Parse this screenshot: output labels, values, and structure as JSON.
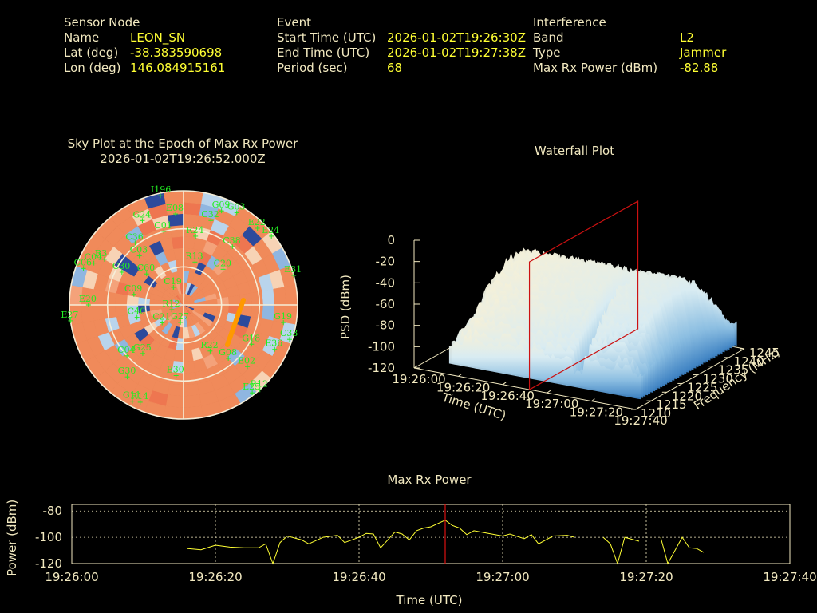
{
  "info": {
    "sensor": {
      "heading": "Sensor Node",
      "rows": [
        {
          "label": "Name",
          "value": "LEON_SN"
        },
        {
          "label": "Lat (deg)",
          "value": "-38.383590698"
        },
        {
          "label": "Lon (deg)",
          "value": "146.084915161"
        }
      ]
    },
    "event": {
      "heading": "Event",
      "rows": [
        {
          "label": "Start Time (UTC)",
          "value": "2026-01-02T19:26:30Z"
        },
        {
          "label": "End Time (UTC)",
          "value": "2026-01-02T19:27:38Z"
        },
        {
          "label": "Period (sec)",
          "value": "68"
        }
      ]
    },
    "interference": {
      "heading": "Interference",
      "rows": [
        {
          "label": "Band",
          "value": "L2"
        },
        {
          "label": "Type",
          "value": "Jammer"
        },
        {
          "label": "Max Rx Power (dBm)",
          "value": "-82.88"
        }
      ]
    }
  },
  "skyplot": {
    "title": "Sky Plot at the Epoch of Max Rx Power",
    "subtitle": "2026-01-02T19:26:52.000Z",
    "colors": {
      "warm": "#f08a5a",
      "light": "#f7d3b5",
      "cool": "#8fb6e0",
      "dark": "#2d4a9c",
      "ring": "#f5eed8",
      "satellite": "#22ee22",
      "trace": "#ff9900"
    },
    "satellites": [
      {
        "id": "I196",
        "az": 348,
        "el": 88
      },
      {
        "id": "G03",
        "az": 30,
        "el": 84
      },
      {
        "id": "G09",
        "az": 22,
        "el": 80
      },
      {
        "id": "E22",
        "az": 44,
        "el": 84
      },
      {
        "id": "G24",
        "az": 334,
        "el": 74
      },
      {
        "id": "E08",
        "az": 355,
        "el": 72
      },
      {
        "id": "C32",
        "az": 18,
        "el": 70
      },
      {
        "id": "E24",
        "az": 52,
        "el": 88
      },
      {
        "id": "C01",
        "az": 345,
        "el": 60
      },
      {
        "id": "C38",
        "az": 40,
        "el": 60
      },
      {
        "id": "R24",
        "az": 10,
        "el": 55
      },
      {
        "id": "C36",
        "az": 322,
        "el": 62
      },
      {
        "id": "R3",
        "az": 300,
        "el": 72
      },
      {
        "id": "C03",
        "az": 318,
        "el": 52
      },
      {
        "id": "E31",
        "az": 75,
        "el": 90
      },
      {
        "id": "C04",
        "az": 295,
        "el": 78
      },
      {
        "id": "C06",
        "az": 290,
        "el": 84
      },
      {
        "id": "R13",
        "az": 15,
        "el": 35
      },
      {
        "id": "C20",
        "az": 48,
        "el": 42
      },
      {
        "id": "C60",
        "az": 310,
        "el": 38
      },
      {
        "id": "C30",
        "az": 298,
        "el": 55
      },
      {
        "id": "C19",
        "az": 330,
        "el": 16
      },
      {
        "id": "C09",
        "az": 282,
        "el": 40
      },
      {
        "id": "E20",
        "az": 270,
        "el": 75
      },
      {
        "id": "C40",
        "az": 255,
        "el": 38
      },
      {
        "id": "R12",
        "az": 248,
        "el": 10
      },
      {
        "id": "G27",
        "az": 190,
        "el": 14
      },
      {
        "id": "C21",
        "az": 230,
        "el": 22
      },
      {
        "id": "E27",
        "az": 262,
        "el": 90
      },
      {
        "id": "G25",
        "az": 220,
        "el": 50
      },
      {
        "id": "G30",
        "az": 218,
        "el": 72
      },
      {
        "id": "C04",
        "az": 228,
        "el": 60
      },
      {
        "id": "E30",
        "az": 186,
        "el": 56
      },
      {
        "id": "G18",
        "az": 120,
        "el": 62
      },
      {
        "id": "G19",
        "az": 100,
        "el": 80
      },
      {
        "id": "E36",
        "az": 116,
        "el": 80
      },
      {
        "id": "C33",
        "az": 108,
        "el": 88
      },
      {
        "id": "R22",
        "az": 150,
        "el": 42
      },
      {
        "id": "G08",
        "az": 140,
        "el": 55
      },
      {
        "id": "E02",
        "az": 134,
        "el": 70
      },
      {
        "id": "R12",
        "az": 138,
        "el": 90
      },
      {
        "id": "E25",
        "az": 142,
        "el": 88
      },
      {
        "id": "G11",
        "az": 208,
        "el": 86
      },
      {
        "id": "R14",
        "az": 204,
        "el": 84
      }
    ]
  },
  "waterfall": {
    "title": "Waterfall Plot",
    "colors": {
      "top": "#f5f0d8",
      "bottom": "#3b82c4",
      "marker": "#cc1111"
    }
  },
  "chart_data": [
    {
      "type": "area",
      "name": "waterfall",
      "title": "Waterfall Plot",
      "xlabel": "Time (UTC)",
      "ylabel": "Frequency (MHz)",
      "zlabel": "PSD (dBm)",
      "x_ticks": [
        "19:26:00",
        "19:26:20",
        "19:26:40",
        "19:27:00",
        "19:27:20",
        "19:27:40"
      ],
      "y_ticks": [
        "1210",
        "1215",
        "1220",
        "1225",
        "1230",
        "1235",
        "1240",
        "1245"
      ],
      "z_ticks": [
        "0",
        "-20",
        "-40",
        "-60",
        "-80",
        "-100",
        "-120"
      ],
      "xlim": [
        "19:26:00",
        "19:27:40"
      ],
      "ylim": [
        1210,
        1245
      ],
      "zlim": [
        -120,
        0
      ],
      "time_marker": "19:26:52"
    },
    {
      "type": "line",
      "name": "max-rx-power",
      "title": "Max Rx Power",
      "xlabel": "Time (UTC)",
      "ylabel": "Power (dBm)",
      "x_ticks": [
        "19:26:00",
        "19:26:20",
        "19:26:40",
        "19:27:00",
        "19:27:20",
        "19:27:40"
      ],
      "y_ticks": [
        "-80",
        "-100",
        "-120"
      ],
      "xlim": [
        "19:26:00",
        "19:27:40"
      ],
      "ylim": [
        -120,
        -75
      ],
      "grid": true,
      "marker_time": "19:26:52",
      "line_color": "#ffff33",
      "marker_color": "#dd1111",
      "segments": [
        [
          {
            "t": "19:26:16",
            "y": -108.5
          },
          {
            "t": "19:26:18",
            "y": -109.5
          },
          {
            "t": "19:26:20",
            "y": -106.0
          },
          {
            "t": "19:26:22",
            "y": -107.5
          },
          {
            "t": "19:26:24",
            "y": -108.0
          },
          {
            "t": "19:26:26",
            "y": -108.0
          },
          {
            "t": "19:26:27",
            "y": -105.0
          },
          {
            "t": "19:26:28",
            "y": -120.0
          },
          {
            "t": "19:26:29",
            "y": -104.0
          },
          {
            "t": "19:26:30",
            "y": -99.0
          },
          {
            "t": "19:26:32",
            "y": -102.0
          },
          {
            "t": "19:26:33",
            "y": -105.0
          },
          {
            "t": "19:26:35",
            "y": -100.0
          },
          {
            "t": "19:26:37",
            "y": -98.5
          },
          {
            "t": "19:26:38",
            "y": -104.0
          },
          {
            "t": "19:26:40",
            "y": -100.0
          },
          {
            "t": "19:26:41",
            "y": -97.0
          },
          {
            "t": "19:26:42",
            "y": -97.5
          },
          {
            "t": "19:26:43",
            "y": -108.0
          },
          {
            "t": "19:26:44",
            "y": -102.0
          },
          {
            "t": "19:26:45",
            "y": -96.0
          },
          {
            "t": "19:26:46",
            "y": -97.5
          },
          {
            "t": "19:26:47",
            "y": -102.0
          },
          {
            "t": "19:26:48",
            "y": -95.0
          },
          {
            "t": "19:26:49",
            "y": -93.0
          },
          {
            "t": "19:26:50",
            "y": -92.0
          },
          {
            "t": "19:26:52",
            "y": -87.0
          },
          {
            "t": "19:26:53",
            "y": -91.0
          },
          {
            "t": "19:26:54",
            "y": -93.0
          },
          {
            "t": "19:26:55",
            "y": -98.0
          },
          {
            "t": "19:26:56",
            "y": -95.0
          },
          {
            "t": "19:26:58",
            "y": -97.0
          },
          {
            "t": "19:27:00",
            "y": -99.0
          },
          {
            "t": "19:27:01",
            "y": -97.5
          },
          {
            "t": "19:27:03",
            "y": -101.0
          },
          {
            "t": "19:27:04",
            "y": -98.0
          },
          {
            "t": "19:27:05",
            "y": -105.0
          },
          {
            "t": "19:27:07",
            "y": -99.0
          },
          {
            "t": "19:27:09",
            "y": -98.5
          },
          {
            "t": "19:27:10",
            "y": -100.0
          }
        ],
        [
          {
            "t": "19:27:14",
            "y": -100.0
          },
          {
            "t": "19:27:15",
            "y": -105.0
          },
          {
            "t": "19:27:16",
            "y": -120.0
          },
          {
            "t": "19:27:17",
            "y": -100.0
          },
          {
            "t": "19:27:19",
            "y": -103.0
          }
        ],
        [
          {
            "t": "19:27:22",
            "y": -100.0
          },
          {
            "t": "19:27:23",
            "y": -120.0
          },
          {
            "t": "19:27:25",
            "y": -100.0
          },
          {
            "t": "19:27:26",
            "y": -108.0
          },
          {
            "t": "19:27:27",
            "y": -108.5
          },
          {
            "t": "19:27:28",
            "y": -111.5
          }
        ]
      ]
    }
  ]
}
